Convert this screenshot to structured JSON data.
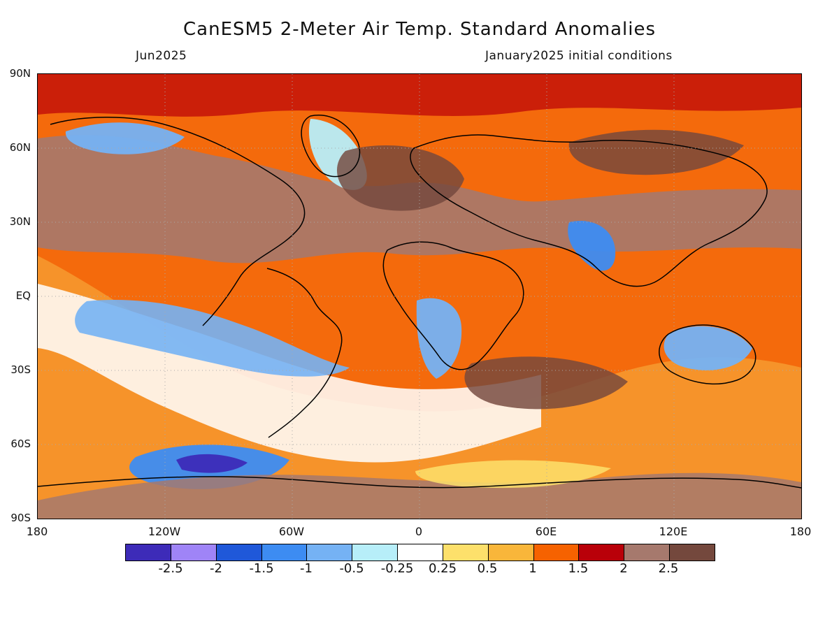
{
  "title": "CanESM5 2-Meter Air Temp. Standard Anomalies",
  "subtitle_left": "Jun2025",
  "subtitle_right": "January2025 initial conditions",
  "lat_labels": [
    "90N",
    "60N",
    "30N",
    "EQ",
    "30S",
    "60S",
    "90S"
  ],
  "lon_labels": [
    "180",
    "120W",
    "60W",
    "0",
    "60E",
    "120E",
    "180"
  ],
  "colorbar": {
    "colors": [
      "#3d2bb8",
      "#9f84f7",
      "#1f58d9",
      "#3d8cf2",
      "#75b2f4",
      "#b7eef9",
      "#ffffff",
      "#fde06b",
      "#f9b63a",
      "#f66200",
      "#b90009",
      "#a6796d",
      "#74483d"
    ],
    "labels": [
      "-2.5",
      "-2",
      "-1.5",
      "-1",
      "-0.5",
      "-0.25",
      "0.25",
      "0.5",
      "1",
      "1.5",
      "2",
      "2.5"
    ]
  }
}
